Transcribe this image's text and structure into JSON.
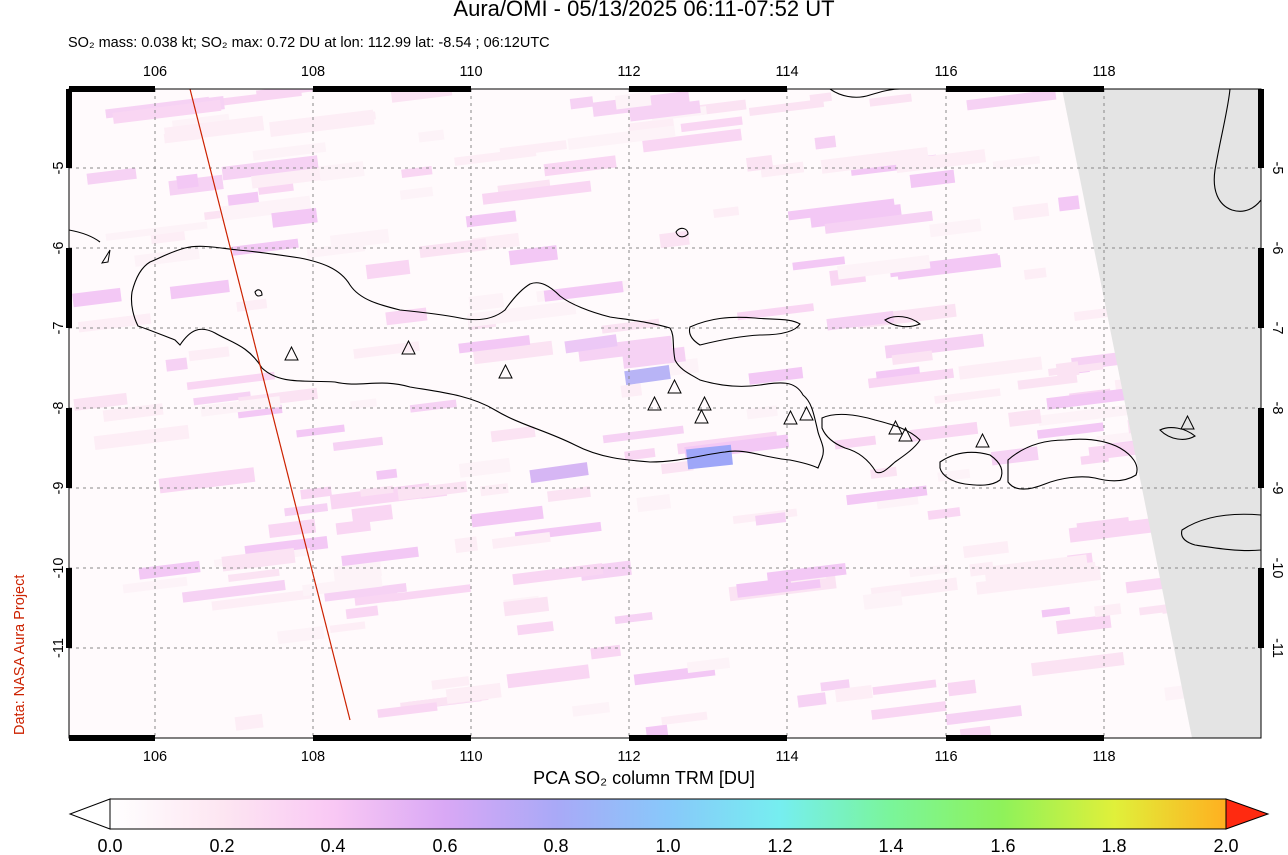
{
  "title": "Aura/OMI - 05/13/2025 06:11-07:52 UT",
  "subtitle": "SO₂ mass: 0.038 kt; SO₂ max: 0.72 DU at lon: 112.99 lat: -8.54 ; 06:12UTC",
  "credit": "Data: NASA Aura Project",
  "map": {
    "lon_ticks": [
      "106",
      "108",
      "110",
      "112",
      "114",
      "116",
      "118"
    ],
    "lat_ticks": [
      "-5",
      "-6",
      "-7",
      "-8",
      "-9",
      "-10",
      "-11"
    ]
  },
  "colorbar": {
    "title": "PCA SO₂ column TRM [DU]",
    "ticks": [
      "0.0",
      "0.2",
      "0.4",
      "0.6",
      "0.8",
      "1.0",
      "1.2",
      "1.4",
      "1.6",
      "1.8",
      "2.0"
    ],
    "colors": [
      "#ffffff",
      "#fde6f2",
      "#f9c8f4",
      "#d9a8f5",
      "#a9a9f7",
      "#88c8fa",
      "#76eef0",
      "#7af59a",
      "#8ff25a",
      "#e0f03a",
      "#ffb020",
      "#ff2a10"
    ]
  },
  "colors": {
    "swath_edge_line": "#cc2200",
    "no_data": "#e4e4e4",
    "accent_max": "#9ea6f8"
  }
}
